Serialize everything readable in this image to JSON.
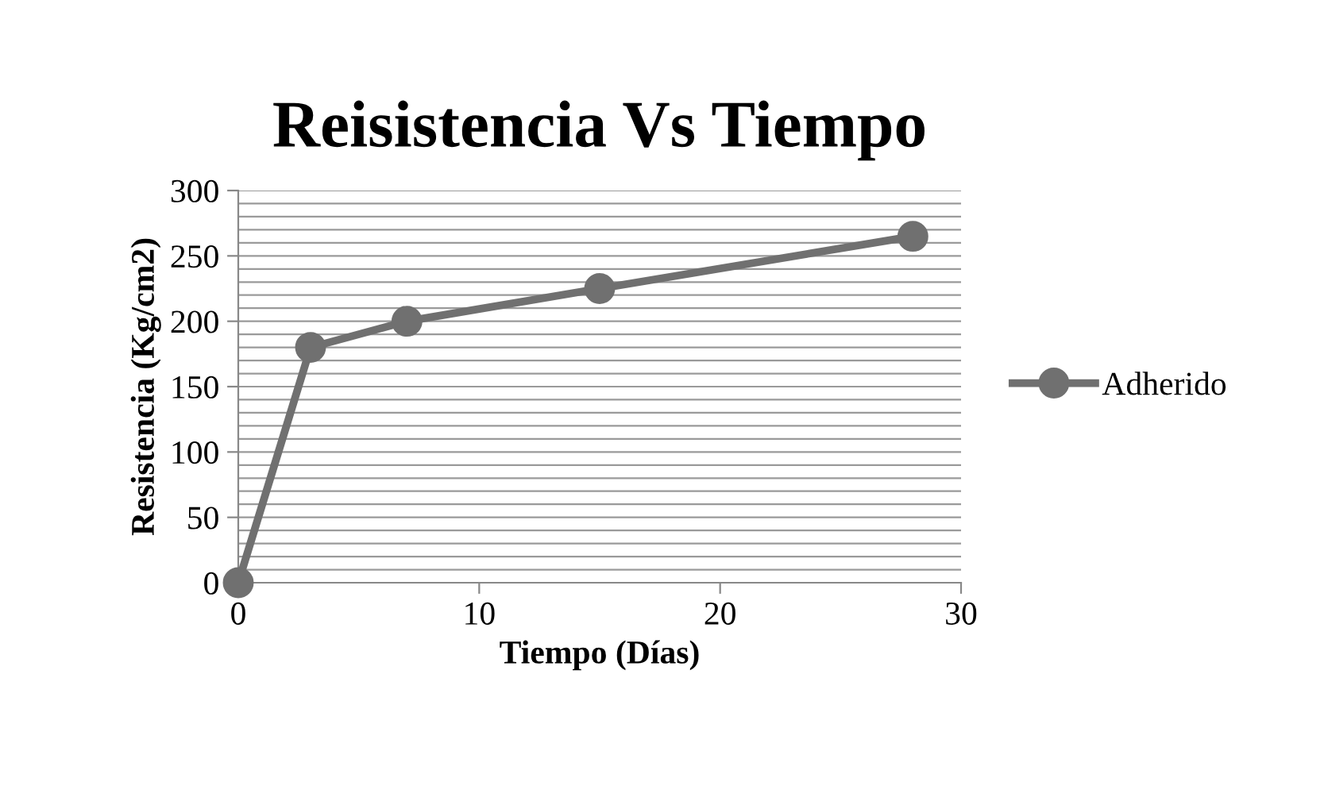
{
  "chart_data": {
    "type": "line",
    "title": "Reisistencia Vs Tiempo",
    "xlabel": "Tiempo (Días)",
    "ylabel": "Resistencia (Kg/cm2)",
    "x": [
      0,
      3,
      7,
      15,
      28
    ],
    "series": [
      {
        "name": "Adherido",
        "color": "#707070",
        "values": [
          0,
          180,
          200,
          225,
          265
        ]
      }
    ],
    "xlim": [
      0,
      30
    ],
    "xticks": [
      0,
      10,
      20,
      30
    ],
    "ylim": [
      0,
      300
    ],
    "yticks": [
      0,
      {
        "value": 10,
        "label": null
      },
      {
        "value": 20,
        "label": null
      },
      {
        "value": 30,
        "label": null
      },
      {
        "value": 40,
        "label": null
      },
      50,
      {
        "value": 60,
        "label": null
      },
      {
        "value": 70,
        "label": null
      },
      {
        "value": 80,
        "label": null
      },
      {
        "value": 90,
        "label": null
      },
      100,
      {
        "value": 110,
        "label": null
      },
      {
        "value": 120,
        "label": null
      },
      {
        "value": 130,
        "label": null
      },
      {
        "value": 140,
        "label": null
      },
      150,
      {
        "value": 160,
        "label": null
      },
      {
        "value": 170,
        "label": null
      },
      {
        "value": 180,
        "label": null
      },
      {
        "value": 190,
        "label": null
      },
      200,
      {
        "value": 210,
        "label": null
      },
      {
        "value": 220,
        "label": null
      },
      {
        "value": 230,
        "label": null
      },
      {
        "value": 240,
        "label": null
      },
      250,
      {
        "value": 260,
        "label": null
      },
      {
        "value": 270,
        "label": null
      },
      {
        "value": 280,
        "label": null
      },
      {
        "value": 290,
        "label": null
      },
      300
    ],
    "grid": "y",
    "legend": "right",
    "marker": "circle",
    "line_style": "solid"
  }
}
